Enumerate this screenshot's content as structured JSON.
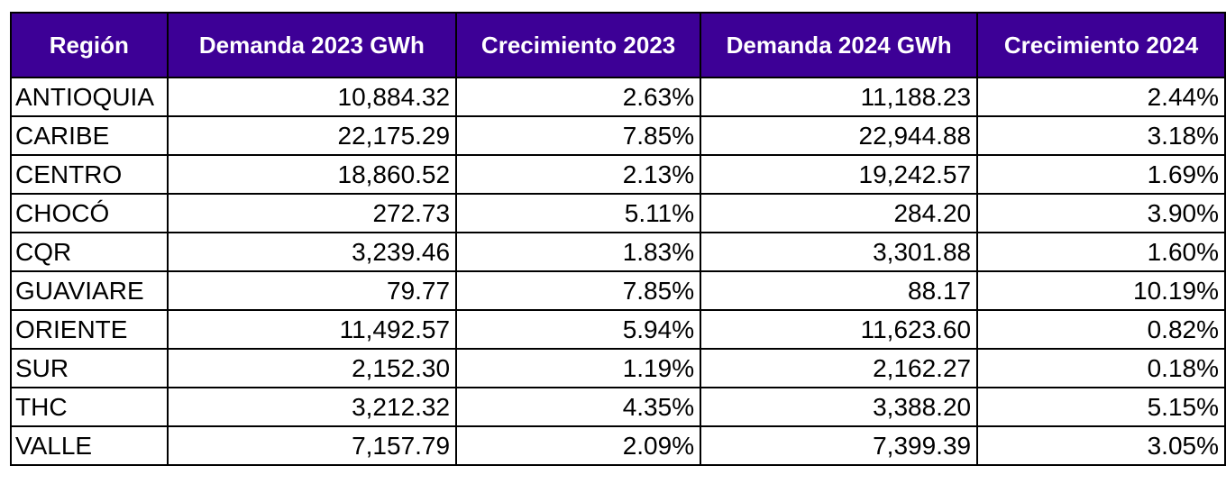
{
  "table": {
    "headers": [
      "Región",
      "Demanda 2023 GWh",
      "Crecimiento 2023",
      "Demanda 2024 GWh",
      "Crecimiento 2024"
    ],
    "rows": [
      [
        "ANTIOQUIA",
        "10,884.32",
        "2.63%",
        "11,188.23",
        "2.44%"
      ],
      [
        "CARIBE",
        "22,175.29",
        "7.85%",
        "22,944.88",
        "3.18%"
      ],
      [
        "CENTRO",
        "18,860.52",
        "2.13%",
        "19,242.57",
        "1.69%"
      ],
      [
        "CHOCÓ",
        "272.73",
        "5.11%",
        "284.20",
        "3.90%"
      ],
      [
        "CQR",
        "3,239.46",
        "1.83%",
        "3,301.88",
        "1.60%"
      ],
      [
        "GUAVIARE",
        "79.77",
        "7.85%",
        "88.17",
        "10.19%"
      ],
      [
        "ORIENTE",
        "11,492.57",
        "5.94%",
        "11,623.60",
        "0.82%"
      ],
      [
        "SUR",
        "2,152.30",
        "1.19%",
        "2,162.27",
        "0.18%"
      ],
      [
        "THC",
        "3,212.32",
        "4.35%",
        "3,388.20",
        "5.15%"
      ],
      [
        "VALLE",
        "7,157.79",
        "2.09%",
        "7,399.39",
        "3.05%"
      ]
    ]
  },
  "colors": {
    "header_background": "#3d0096",
    "header_text": "#ffffff",
    "border": "#000000"
  }
}
